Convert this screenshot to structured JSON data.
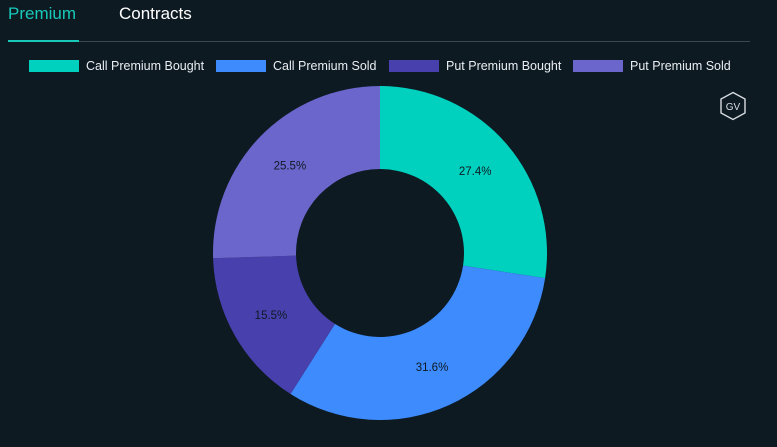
{
  "tabs": [
    {
      "label": "Premium",
      "active": true
    },
    {
      "label": "Contracts",
      "active": false
    }
  ],
  "logo": {
    "text": "GV"
  },
  "chart_data": {
    "type": "pie",
    "donut": true,
    "legend_position": "top",
    "categories": [
      "Call Premium Bought",
      "Call Premium Sold",
      "Put Premium Bought",
      "Put Premium Sold"
    ],
    "values": [
      27.4,
      31.6,
      15.5,
      25.5
    ],
    "labels": [
      "27.4%",
      "31.6%",
      "15.5%",
      "25.5%"
    ],
    "colors": [
      "#00d1bf",
      "#3d8bfd",
      "#4840ad",
      "#6b66cc"
    ],
    "start_angle_deg": 0,
    "direction": "clockwise"
  }
}
